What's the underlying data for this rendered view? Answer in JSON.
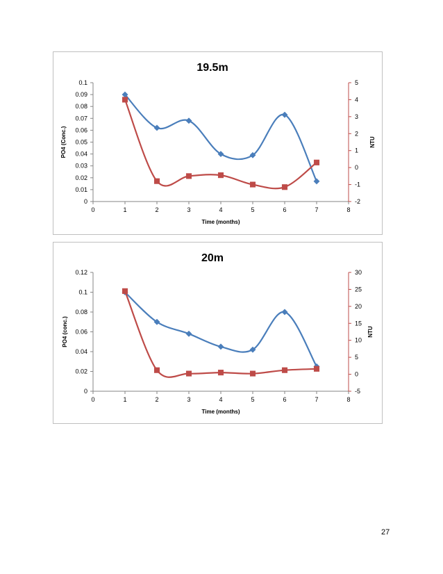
{
  "page": {
    "number": "27"
  },
  "chart_data": [
    {
      "type": "line",
      "title": "19.5m",
      "xlabel": "Time (months)",
      "ylabel": "PO4 (Conc.)",
      "y2label": "NTU",
      "xlim": [
        0,
        8
      ],
      "xticks": [
        "0",
        "1",
        "2",
        "3",
        "4",
        "5",
        "6",
        "7",
        "8"
      ],
      "ylim": [
        0,
        0.1
      ],
      "yticks": [
        "0",
        "0.01",
        "0.02",
        "0.03",
        "0.04",
        "0.05",
        "0.06",
        "0.07",
        "0.08",
        "0.09",
        "0.1"
      ],
      "y2lim": [
        -2,
        5
      ],
      "y2ticks": [
        "-2",
        "-1",
        "0",
        "1",
        "2",
        "3",
        "4",
        "5"
      ],
      "series": [
        {
          "name": "PO4",
          "axis": "left",
          "color": "#4a7ebb",
          "marker": "diamond",
          "x": [
            1,
            2,
            3,
            4,
            5,
            6,
            7
          ],
          "values": [
            0.09,
            0.062,
            0.068,
            0.04,
            0.039,
            0.073,
            0.017
          ]
        },
        {
          "name": "NTU",
          "axis": "right",
          "color": "#be4b48",
          "marker": "square",
          "x": [
            1,
            2,
            3,
            4,
            5,
            6,
            7
          ],
          "values": [
            4.0,
            -0.8,
            -0.5,
            -0.45,
            -1.0,
            -1.15,
            0.3
          ]
        }
      ]
    },
    {
      "type": "line",
      "title": "20m",
      "xlabel": "Time (months)",
      "ylabel": "PO4 (conc.)",
      "y2label": "NTU",
      "xlim": [
        0,
        8
      ],
      "xticks": [
        "0",
        "1",
        "2",
        "3",
        "4",
        "5",
        "6",
        "7",
        "8"
      ],
      "ylim": [
        0,
        0.12
      ],
      "yticks": [
        "0",
        "0.02",
        "0.04",
        "0.06",
        "0.08",
        "0.1",
        "0.12"
      ],
      "y2lim": [
        -5,
        30
      ],
      "y2ticks": [
        "-5",
        "0",
        "5",
        "10",
        "15",
        "20",
        "25",
        "30"
      ],
      "series": [
        {
          "name": "PO4",
          "axis": "left",
          "color": "#4a7ebb",
          "marker": "diamond",
          "x": [
            1,
            2,
            3,
            4,
            5,
            6,
            7
          ],
          "values": [
            0.1,
            0.07,
            0.058,
            0.045,
            0.042,
            0.08,
            0.025
          ]
        },
        {
          "name": "NTU",
          "axis": "right",
          "color": "#be4b48",
          "marker": "square",
          "x": [
            1,
            2,
            3,
            4,
            5,
            6,
            7
          ],
          "values": [
            24.5,
            1.2,
            0.2,
            0.5,
            0.2,
            1.2,
            1.6
          ]
        }
      ]
    }
  ]
}
